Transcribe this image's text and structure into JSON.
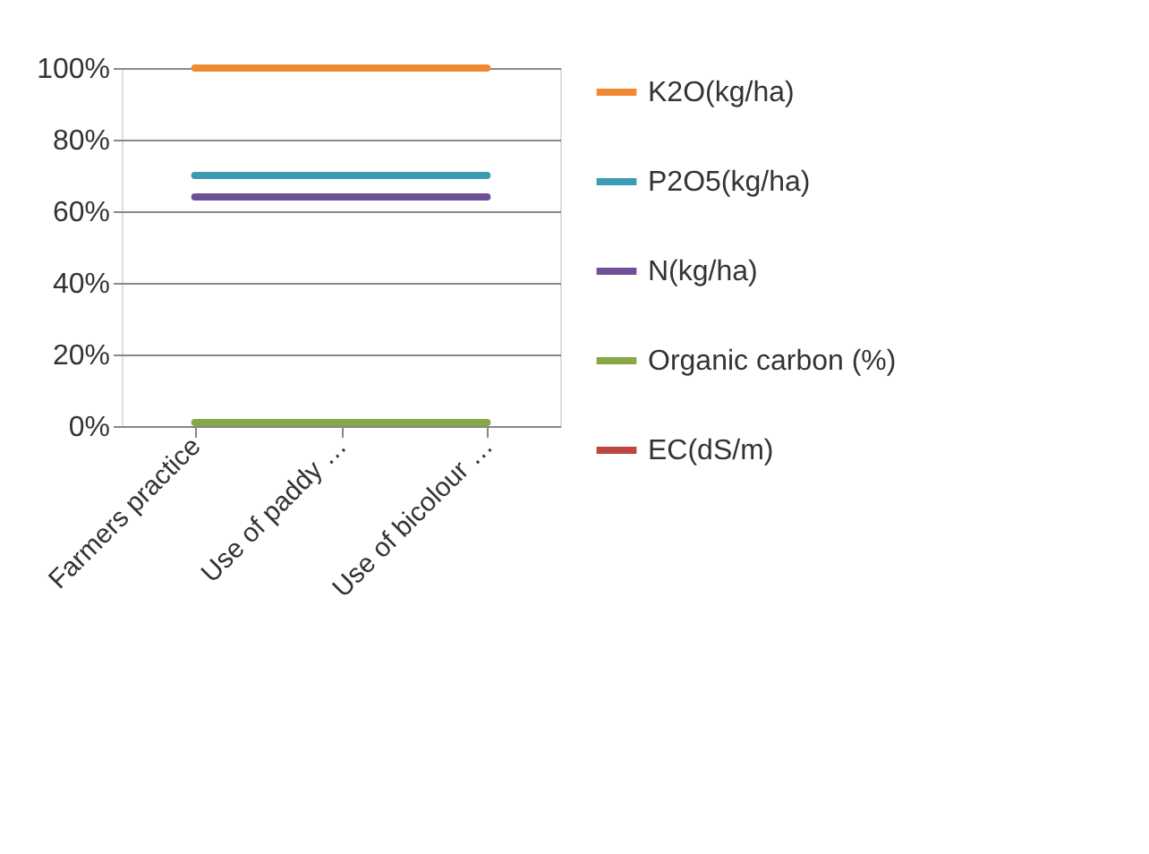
{
  "chart_data": {
    "type": "line",
    "categories": [
      "Farmers practice",
      "Use of paddy …",
      "Use of bicolour …"
    ],
    "series": [
      {
        "name": "K2O(kg/ha)",
        "color": "#f08a32",
        "values": [
          100,
          100,
          100
        ]
      },
      {
        "name": "P2O5(kg/ha)",
        "color": "#3b9bb3",
        "values": [
          70,
          70,
          70
        ]
      },
      {
        "name": "N(kg/ha)",
        "color": "#6f4f96",
        "values": [
          64,
          64,
          64
        ]
      },
      {
        "name": "Organic carbon (%)",
        "color": "#86a845",
        "values": [
          1,
          1,
          1
        ]
      },
      {
        "name": "EC(dS/m)",
        "color": "#bf4540",
        "values": [
          null,
          null,
          null
        ]
      }
    ],
    "ylim": [
      0,
      100
    ],
    "yticks": [
      {
        "value": 0,
        "label": "0%"
      },
      {
        "value": 20,
        "label": "20%"
      },
      {
        "value": 40,
        "label": "40%"
      },
      {
        "value": 60,
        "label": "60%"
      },
      {
        "value": 80,
        "label": "80%"
      },
      {
        "value": 100,
        "label": "100%"
      }
    ],
    "grid": "y",
    "legend": "right",
    "marker": "none",
    "line_style": "solid"
  }
}
